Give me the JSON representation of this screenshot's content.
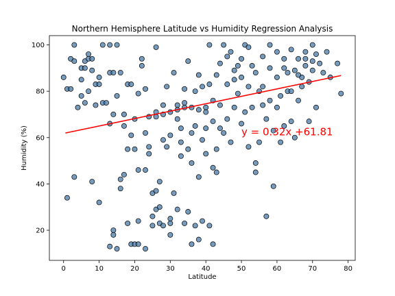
{
  "chart_data": {
    "type": "scatter",
    "title": "Northern Hemisphere Latitude vs Humidity Regression Analysis",
    "xlabel": "Latitude",
    "ylabel": "Humidity (%)",
    "xlim": [
      -4,
      82
    ],
    "ylim": [
      7,
      104
    ],
    "xticks": [
      0,
      10,
      20,
      30,
      40,
      50,
      60,
      70,
      80
    ],
    "yticks": [
      20,
      40,
      60,
      80,
      100
    ],
    "grid": false,
    "point_color": "#4a7aa6",
    "line_color": "#ff0000",
    "regression": {
      "slope": 0.32,
      "intercept": 61.81,
      "x_range": [
        0.5,
        78
      ],
      "equation_label": "y = 0.32x +61.81",
      "label_at": [
        50,
        61
      ]
    },
    "series": [
      {
        "points": [
          [
            0,
            86
          ],
          [
            1,
            81
          ],
          [
            1,
            34
          ],
          [
            2,
            94
          ],
          [
            2,
            81
          ],
          [
            3,
            43
          ],
          [
            3,
            100
          ],
          [
            3,
            93
          ],
          [
            4,
            73
          ],
          [
            5,
            85
          ],
          [
            5,
            78
          ],
          [
            5,
            90
          ],
          [
            6,
            90
          ],
          [
            6,
            75
          ],
          [
            6,
            93
          ],
          [
            7,
            96
          ],
          [
            7,
            94
          ],
          [
            7,
            80
          ],
          [
            8,
            41
          ],
          [
            8,
            94
          ],
          [
            8,
            89
          ],
          [
            9,
            83
          ],
          [
            9,
            74
          ],
          [
            10,
            86
          ],
          [
            10,
            83
          ],
          [
            10,
            32
          ],
          [
            11,
            100
          ],
          [
            11,
            75
          ],
          [
            12,
            75
          ],
          [
            13,
            88
          ],
          [
            13,
            66
          ],
          [
            13,
            100
          ],
          [
            13,
            13
          ],
          [
            14,
            20
          ],
          [
            14,
            18
          ],
          [
            14,
            88
          ],
          [
            14,
            70
          ],
          [
            15,
            78
          ],
          [
            15,
            100
          ],
          [
            15,
            12
          ],
          [
            16,
            88
          ],
          [
            16,
            42
          ],
          [
            16,
            38
          ],
          [
            17,
            44
          ],
          [
            17,
            70
          ],
          [
            17,
            65
          ],
          [
            18,
            83
          ],
          [
            18,
            55
          ],
          [
            18,
            23
          ],
          [
            19,
            14
          ],
          [
            19,
            61
          ],
          [
            19,
            83
          ],
          [
            20,
            55
          ],
          [
            20,
            14
          ],
          [
            20,
            68
          ],
          [
            21,
            24
          ],
          [
            21,
            14
          ],
          [
            21,
            79
          ],
          [
            21,
            46
          ],
          [
            22,
            94
          ],
          [
            22,
            91
          ],
          [
            23,
            46
          ],
          [
            23,
            12
          ],
          [
            23,
            81
          ],
          [
            23,
            62
          ],
          [
            24,
            56
          ],
          [
            24,
            53
          ],
          [
            25,
            22
          ],
          [
            25,
            36
          ],
          [
            25,
            26
          ],
          [
            26,
            99
          ],
          [
            26,
            69
          ],
          [
            26,
            29
          ],
          [
            26,
            37
          ],
          [
            27,
            30
          ],
          [
            27,
            41
          ],
          [
            27,
            23
          ],
          [
            28,
            74
          ],
          [
            28,
            59
          ],
          [
            28,
            22
          ],
          [
            29,
            56
          ],
          [
            29,
            82
          ],
          [
            30,
            23
          ],
          [
            30,
            18
          ],
          [
            30,
            25
          ],
          [
            30,
            61
          ],
          [
            31,
            36
          ],
          [
            31,
            88
          ],
          [
            32,
            74
          ],
          [
            32,
            29
          ],
          [
            32,
            68
          ],
          [
            33,
            64
          ],
          [
            33,
            52
          ],
          [
            33,
            58
          ],
          [
            34,
            23
          ],
          [
            34,
            81
          ],
          [
            34,
            73
          ],
          [
            35,
            93
          ],
          [
            35,
            28
          ],
          [
            35,
            55
          ],
          [
            36,
            62
          ],
          [
            36,
            14
          ],
          [
            36,
            49
          ],
          [
            37,
            80
          ],
          [
            37,
            22
          ],
          [
            37,
            65
          ],
          [
            38,
            87
          ],
          [
            38,
            43
          ],
          [
            38,
            16
          ],
          [
            39,
            82
          ],
          [
            39,
            59
          ],
          [
            39,
            24
          ],
          [
            40,
            73
          ],
          [
            40,
            64
          ],
          [
            40,
            53
          ],
          [
            41,
            100
          ],
          [
            41,
            22
          ],
          [
            41,
            83
          ],
          [
            42,
            47
          ],
          [
            42,
            14
          ],
          [
            42,
            76
          ],
          [
            43,
            45
          ],
          [
            43,
            55
          ],
          [
            43,
            87
          ],
          [
            44,
            74
          ],
          [
            44,
            64
          ],
          [
            45,
            100
          ],
          [
            45,
            62
          ],
          [
            46,
            83
          ],
          [
            46,
            68
          ],
          [
            47,
            97
          ],
          [
            47,
            58
          ],
          [
            48,
            89
          ],
          [
            48,
            73
          ],
          [
            49,
            91
          ],
          [
            49,
            79
          ],
          [
            50,
            86
          ],
          [
            50,
            66
          ],
          [
            51,
            100
          ],
          [
            51,
            71
          ],
          [
            52,
            82
          ],
          [
            52,
            56
          ],
          [
            53,
            91
          ],
          [
            53,
            73
          ],
          [
            54,
            45
          ],
          [
            54,
            49
          ],
          [
            55,
            80
          ],
          [
            55,
            58
          ],
          [
            56,
            95
          ],
          [
            56,
            82
          ],
          [
            57,
            26
          ],
          [
            57,
            68
          ],
          [
            58,
            100
          ],
          [
            58,
            90
          ],
          [
            59,
            39
          ],
          [
            59,
            63
          ],
          [
            60,
            86
          ],
          [
            60,
            97
          ],
          [
            61,
            78
          ],
          [
            61,
            58
          ],
          [
            62,
            94
          ],
          [
            62,
            65
          ],
          [
            63,
            88
          ],
          [
            63,
            80
          ],
          [
            64,
            98
          ],
          [
            64,
            67
          ],
          [
            65,
            89
          ],
          [
            65,
            60
          ],
          [
            66,
            94
          ],
          [
            66,
            76
          ],
          [
            67,
            86
          ],
          [
            67,
            82
          ],
          [
            68,
            91
          ],
          [
            68,
            97
          ],
          [
            69,
            84
          ],
          [
            69,
            67
          ],
          [
            70,
            100
          ],
          [
            70,
            89
          ],
          [
            71,
            96
          ],
          [
            71,
            73
          ],
          [
            72,
            92
          ],
          [
            73,
            88
          ],
          [
            74,
            97
          ],
          [
            75,
            86
          ],
          [
            77,
            92
          ],
          [
            78,
            79
          ],
          [
            44,
            92
          ],
          [
            46,
            95
          ],
          [
            48,
            85
          ],
          [
            50,
            94
          ],
          [
            52,
            99
          ],
          [
            54,
            88
          ],
          [
            56,
            74
          ],
          [
            58,
            76
          ],
          [
            60,
            73
          ],
          [
            62,
            90
          ],
          [
            64,
            80
          ],
          [
            66,
            87
          ],
          [
            68,
            94
          ],
          [
            70,
            93
          ],
          [
            38,
            72
          ],
          [
            40,
            71
          ],
          [
            42,
            67
          ],
          [
            36,
            73
          ],
          [
            34,
            75
          ],
          [
            32,
            72
          ],
          [
            30,
            71
          ],
          [
            28,
            70
          ],
          [
            26,
            71
          ],
          [
            24,
            69
          ]
        ]
      }
    ]
  }
}
